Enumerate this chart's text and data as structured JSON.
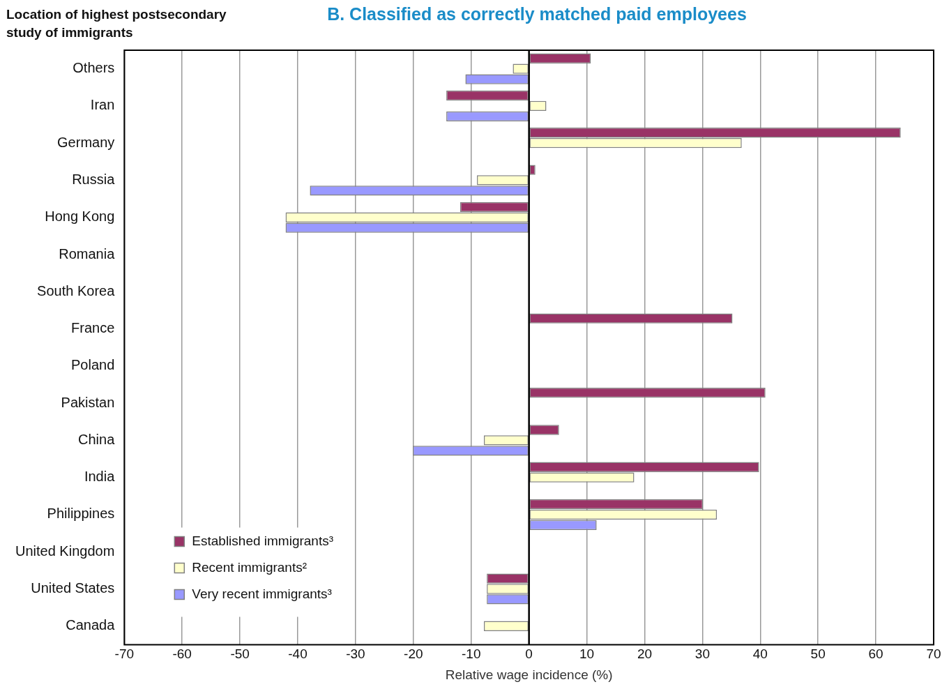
{
  "chart_data": {
    "type": "bar",
    "orientation": "horizontal",
    "title": "B. Classified as correctly matched paid employees",
    "ylabel": "Location of highest postsecondary study of immigrants",
    "xlabel": "Relative wage incidence (%)",
    "categories": [
      "Others",
      "Iran",
      "Germany",
      "Russia",
      "Hong Kong",
      "Romania",
      "South Korea",
      "France",
      "Poland",
      "Pakistan",
      "China",
      "India",
      "Philippines",
      "United Kingdom",
      "United States",
      "Canada"
    ],
    "series": [
      {
        "name": "Established immigrants³",
        "color": "#993366",
        "values": [
          10.7,
          -14.3,
          64.3,
          1.1,
          -11.9,
          null,
          null,
          35.2,
          null,
          40.9,
          5.2,
          39.8,
          30.1,
          null,
          -7.3,
          null
        ]
      },
      {
        "name": "Recent immigrants²",
        "color": "#ffffcc",
        "values": [
          -2.8,
          3.0,
          36.8,
          -9.0,
          -42.1,
          null,
          null,
          null,
          null,
          null,
          -7.8,
          18.2,
          32.5,
          null,
          -7.3,
          -7.8
        ]
      },
      {
        "name": "Very recent immigrants³",
        "color": "#9999ff",
        "values": [
          -11.0,
          -14.3,
          null,
          -37.9,
          -42.1,
          null,
          null,
          null,
          null,
          null,
          -20.1,
          null,
          11.7,
          null,
          -7.3,
          null
        ]
      }
    ],
    "xlim": [
      -70,
      70
    ],
    "xticks": [
      -70,
      -60,
      -50,
      -40,
      -30,
      -20,
      -10,
      0,
      10,
      20,
      30,
      40,
      50,
      60,
      70
    ],
    "grid": "x",
    "legend": "bottom left"
  }
}
